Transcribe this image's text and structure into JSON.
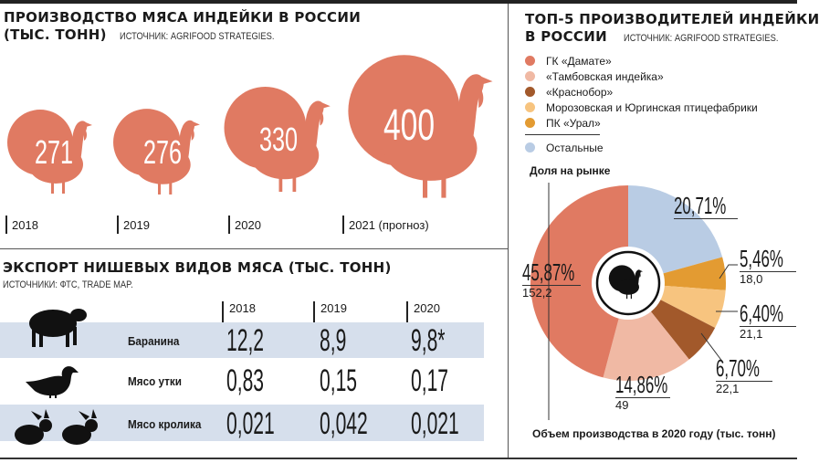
{
  "left_top": {
    "title_line1": "ПРОИЗВОДСТВО МЯСА ИНДЕЙКИ В РОССИИ",
    "title_line2": "(ТЫС. ТОНН)",
    "source": "ИСТОЧНИК: AGRIFOOD STRATEGIES."
  },
  "production": [
    {
      "year": "2018",
      "value": "271"
    },
    {
      "year": "2019",
      "value": "276"
    },
    {
      "year": "2020",
      "value": "330"
    },
    {
      "year": "2021 (прогноз)",
      "value": "400"
    }
  ],
  "export": {
    "title": "ЭКСПОРТ НИШЕВЫХ ВИДОВ МЯСА (ТЫС. ТОНН)",
    "source": "ИСТОЧНИКИ: ФТС, TRADE MAP.",
    "years": [
      "2018",
      "2019",
      "2020"
    ],
    "rows": [
      {
        "label": "Баранина",
        "icon": "sheep-icon",
        "values": [
          "12,2",
          "8,9",
          "9,8*"
        ]
      },
      {
        "label": "Мясо утки",
        "icon": "duck-icon",
        "values": [
          "0,83",
          "0,15",
          "0,17"
        ]
      },
      {
        "label": "Мясо кролика",
        "icon": "rabbit-icon",
        "values": [
          "0,021",
          "0,042",
          "0,021"
        ]
      }
    ]
  },
  "right": {
    "title_line1": "ТОП-5 ПРОИЗВОДИТЕЛЕЙ ИНДЕЙКИ",
    "title_line2": "В РОССИИ",
    "source": "ИСТОЧНИК: AGRIFOOD STRATEGIES.",
    "share_label": "Доля на рынке",
    "volume_caption": "Объем производства в 2020 году (тыс. тонн)",
    "legend": [
      {
        "label": "ГК «Дамате»",
        "color": "#e07a62"
      },
      {
        "label": "«Тамбовская индейка»",
        "color": "#f0b9a4"
      },
      {
        "label": "«Краснобор»",
        "color": "#a2592b"
      },
      {
        "label": "Морозовская и Юргинская птицефабрики",
        "color": "#f7c47f"
      },
      {
        "label": "ПК «Урал»",
        "color": "#e39b32"
      },
      {
        "label": "Остальные",
        "color": "#b9cce4"
      }
    ]
  },
  "chart_data": {
    "type": "pie",
    "title": "ТОП-5 ПРОИЗВОДИТЕЛЕЙ ИНДЕЙКИ В РОССИИ",
    "order": "clockwise from top",
    "slices": [
      {
        "name": "Остальные",
        "percent": 20.71,
        "percent_label": "20,71%",
        "volume": null,
        "color": "#b9cce4"
      },
      {
        "name": "ПК «Урал»",
        "percent": 5.46,
        "percent_label": "5,46%",
        "volume": "18,0",
        "color": "#e39b32"
      },
      {
        "name": "Морозовская и Юргинская птицефабрики",
        "percent": 6.4,
        "percent_label": "6,40%",
        "volume": "21,1",
        "color": "#f7c47f"
      },
      {
        "name": "«Краснобор»",
        "percent": 6.7,
        "percent_label": "6,70%",
        "volume": "22,1",
        "color": "#a2592b"
      },
      {
        "name": "«Тамбовская индейка»",
        "percent": 14.86,
        "percent_label": "14,86%",
        "volume": "49",
        "color": "#f0b9a4"
      },
      {
        "name": "ГК «Дамате»",
        "percent": 45.87,
        "percent_label": "45,87%",
        "volume": "152,2",
        "color": "#e07a62"
      }
    ]
  }
}
